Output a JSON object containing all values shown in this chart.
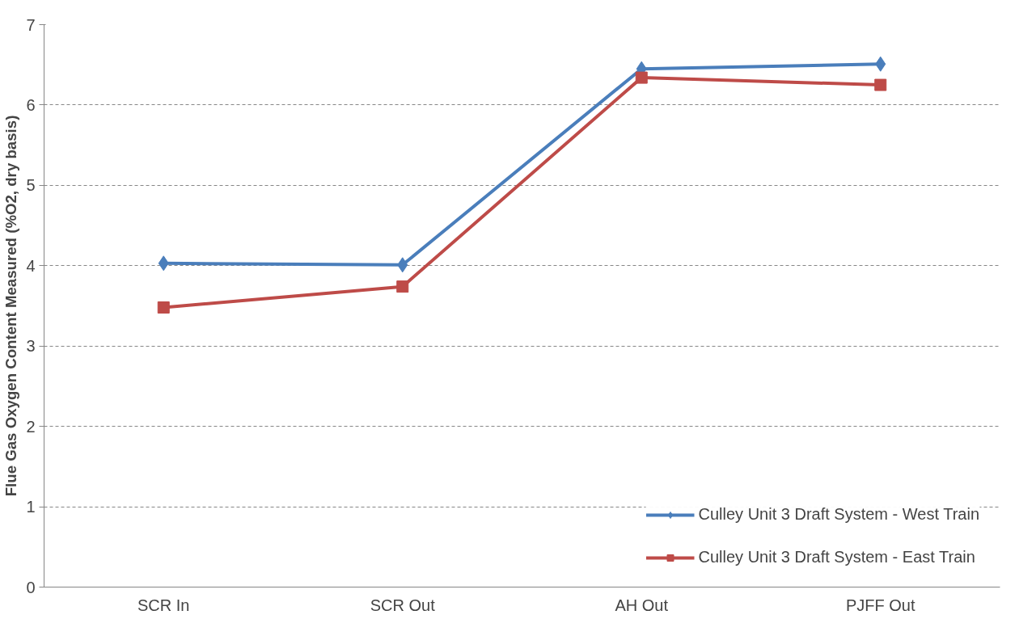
{
  "chart_data": {
    "type": "line",
    "ylabel": "Flue Gas Oxygen Content Measured (%O2, dry basis)",
    "categories": [
      "SCR In",
      "SCR Out",
      "AH Out",
      "PJFF Out"
    ],
    "series": [
      {
        "name": "Culley Unit 3 Draft System - West Train",
        "color": "#4a7ebb",
        "marker": "diamond",
        "values": [
          4.03,
          4.01,
          6.45,
          6.51
        ]
      },
      {
        "name": "Culley Unit 3 Draft System - East Train",
        "color": "#be4b48",
        "marker": "square",
        "values": [
          3.48,
          3.74,
          6.34,
          6.25
        ]
      }
    ],
    "ylim": [
      0,
      7
    ],
    "yticks": [
      0,
      1,
      2,
      3,
      4,
      5,
      6,
      7
    ],
    "grid": "y",
    "legend": "bottom right",
    "line_style": "solid"
  }
}
